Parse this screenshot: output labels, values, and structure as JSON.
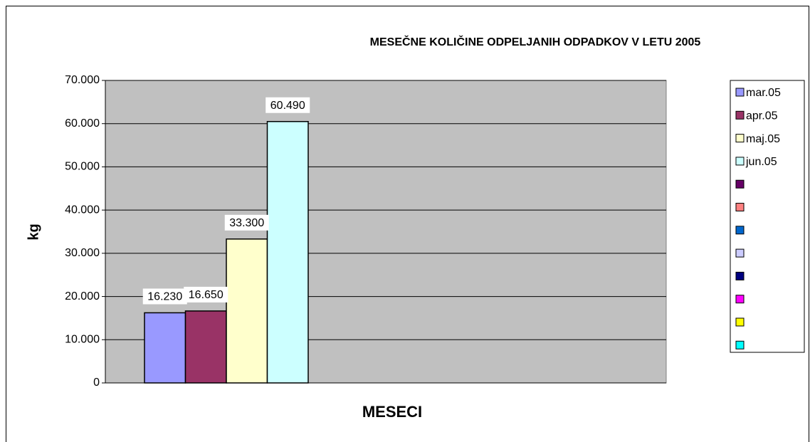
{
  "chart_data": {
    "type": "bar",
    "title": "MESEČNE KOLIČINE ODPELJANIH ODPADKOV V LETU 2005",
    "x_label": "MESECI",
    "y_label": "kg",
    "categories": [
      null
    ],
    "series": [
      {
        "name": "mar.05",
        "color": "#9999ff",
        "values": [
          16230
        ],
        "value_labels": [
          "16.230"
        ]
      },
      {
        "name": "apr.05",
        "color": "#993366",
        "values": [
          16650
        ],
        "value_labels": [
          "16.650"
        ]
      },
      {
        "name": "maj.05",
        "color": "#ffffcc",
        "values": [
          33300
        ],
        "value_labels": [
          "33.300"
        ]
      },
      {
        "name": "jun.05",
        "color": "#ccffff",
        "values": [
          60490
        ],
        "value_labels": [
          "60.490"
        ]
      },
      {
        "name": null,
        "color": "#660066",
        "values": [
          null
        ]
      },
      {
        "name": null,
        "color": "#ff8080",
        "values": [
          null
        ]
      },
      {
        "name": null,
        "color": "#0066cc",
        "values": [
          null
        ]
      },
      {
        "name": null,
        "color": "#ccccff",
        "values": [
          null
        ]
      },
      {
        "name": null,
        "color": "#000080",
        "values": [
          null
        ]
      },
      {
        "name": null,
        "color": "#ff00ff",
        "values": [
          null
        ]
      },
      {
        "name": null,
        "color": "#ffff00",
        "values": [
          null
        ]
      },
      {
        "name": null,
        "color": "#00ffff",
        "values": [
          null
        ]
      }
    ],
    "ylim": [
      0,
      70000
    ],
    "yticks": [
      0,
      {
        "value": 10000,
        "label": "10.000"
      },
      {
        "value": 20000,
        "label": "20.000"
      },
      {
        "value": 30000,
        "label": "30.000"
      },
      {
        "value": 40000,
        "label": "40.000"
      },
      {
        "value": 50000,
        "label": "50.000"
      },
      {
        "value": 60000,
        "label": "60.000"
      },
      {
        "value": 70000,
        "label": "70.000"
      }
    ],
    "grid": true,
    "plot_background": "#c0c0c0",
    "legend": "right"
  }
}
